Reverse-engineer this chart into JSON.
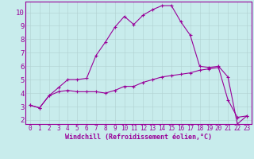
{
  "xlabel": "Windchill (Refroidissement éolien,°C)",
  "background_color": "#c8ecec",
  "line_color": "#990099",
  "grid_color": "#b0d0d0",
  "xticks": [
    0,
    1,
    2,
    3,
    4,
    5,
    6,
    7,
    8,
    9,
    10,
    11,
    12,
    13,
    14,
    15,
    16,
    17,
    18,
    19,
    20,
    21,
    22,
    23
  ],
  "yticks": [
    2,
    3,
    4,
    5,
    6,
    7,
    8,
    9,
    10
  ],
  "ylim": [
    1.7,
    10.8
  ],
  "xlim": [
    -0.5,
    23.5
  ],
  "line1_x": [
    0,
    1,
    2,
    3,
    4,
    5,
    6,
    7,
    8,
    9,
    10,
    11,
    12,
    13,
    14,
    15,
    16,
    17,
    18,
    19,
    20,
    21,
    22,
    23
  ],
  "line1_y": [
    3.1,
    2.9,
    3.8,
    4.4,
    5.0,
    5.0,
    5.1,
    6.8,
    7.8,
    8.9,
    9.7,
    9.1,
    9.8,
    10.2,
    10.5,
    10.5,
    9.3,
    8.3,
    6.0,
    5.9,
    6.0,
    5.2,
    1.7,
    2.3
  ],
  "line2_x": [
    0,
    1,
    2,
    3,
    4,
    5,
    6,
    7,
    8,
    9,
    10,
    11,
    12,
    13,
    14,
    15,
    16,
    17,
    18,
    19,
    20,
    21,
    22,
    23
  ],
  "line2_y": [
    3.1,
    2.9,
    3.8,
    4.1,
    4.2,
    4.1,
    4.1,
    4.1,
    4.0,
    4.2,
    4.5,
    4.5,
    4.8,
    5.0,
    5.2,
    5.3,
    5.4,
    5.5,
    5.7,
    5.8,
    5.9,
    3.5,
    2.2,
    2.3
  ],
  "xlabel_fontsize": 6.0,
  "tick_fontsize_x": 5.5,
  "tick_fontsize_y": 6.5
}
